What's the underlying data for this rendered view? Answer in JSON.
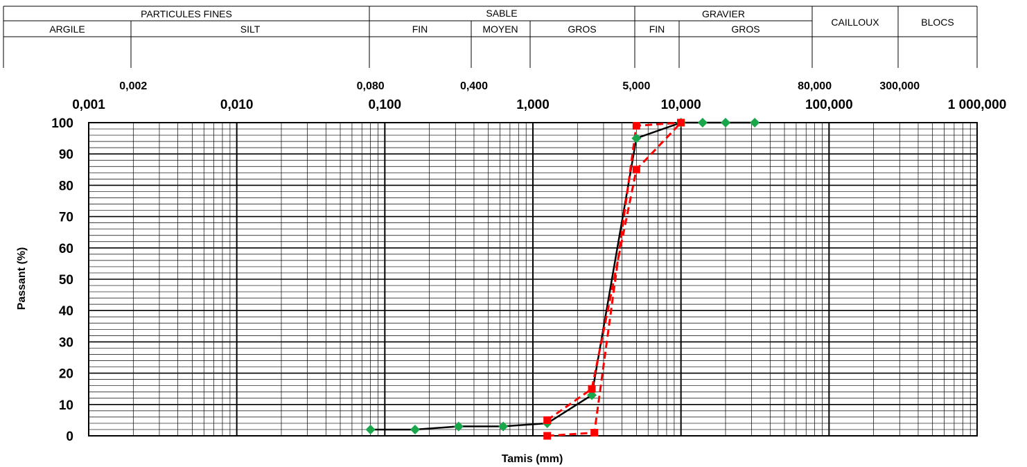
{
  "header": {
    "groups": [
      "PARTICULES FINES",
      "SABLE",
      "GRAVIER"
    ],
    "classes": [
      "ARGILE",
      "SILT",
      "FIN",
      "MOYEN",
      "GROS",
      "FIN",
      "GROS",
      "CAILLOUX",
      "BLOCS"
    ]
  },
  "chart_data": {
    "type": "line",
    "x_scale": "log",
    "xlim": [
      0.001,
      1000
    ],
    "ylim": [
      0,
      100
    ],
    "xlabel": "Tamis (mm)",
    "ylabel": "Passant (%)",
    "x_ticks_major": [
      "0,001",
      "0,010",
      "0,100",
      "1,000",
      "10,000",
      "100,000",
      "1 000,000"
    ],
    "x_ticks_major_values": [
      0.001,
      0.01,
      0.1,
      1,
      10,
      100,
      1000
    ],
    "x_ticks_limits": [
      "0,002",
      "0,080",
      "0,400",
      "5,000",
      "80,000",
      "300,000"
    ],
    "x_ticks_limits_values": [
      0.002,
      0.08,
      0.4,
      5,
      80,
      300
    ],
    "y_ticks": [
      "0",
      "10",
      "20",
      "30",
      "40",
      "50",
      "60",
      "70",
      "80",
      "90",
      "100"
    ],
    "grid": true,
    "series": [
      {
        "style": "solid-black-line-green-diamonds",
        "line_color": "#000000",
        "marker_color": "#1aa64a",
        "x": [
          0.08,
          0.16,
          0.315,
          0.63,
          1.25,
          2.5,
          5,
          10,
          14,
          20,
          31.5
        ],
        "y": [
          2,
          2,
          3,
          3,
          4,
          13,
          95,
          100,
          100,
          100,
          100
        ]
      },
      {
        "style": "dashed-red-line-red-squares",
        "line_color": "#ff0000",
        "marker_color": "#ff0000",
        "x": [
          1.25,
          2.5,
          5,
          10
        ],
        "y": [
          5,
          15,
          85,
          100
        ]
      },
      {
        "style": "dashed-red-line-red-squares",
        "line_color": "#ff0000",
        "marker_color": "#ff0000",
        "x": [
          1.25,
          2.6,
          5,
          10
        ],
        "y": [
          0,
          1,
          99,
          100
        ]
      }
    ]
  }
}
